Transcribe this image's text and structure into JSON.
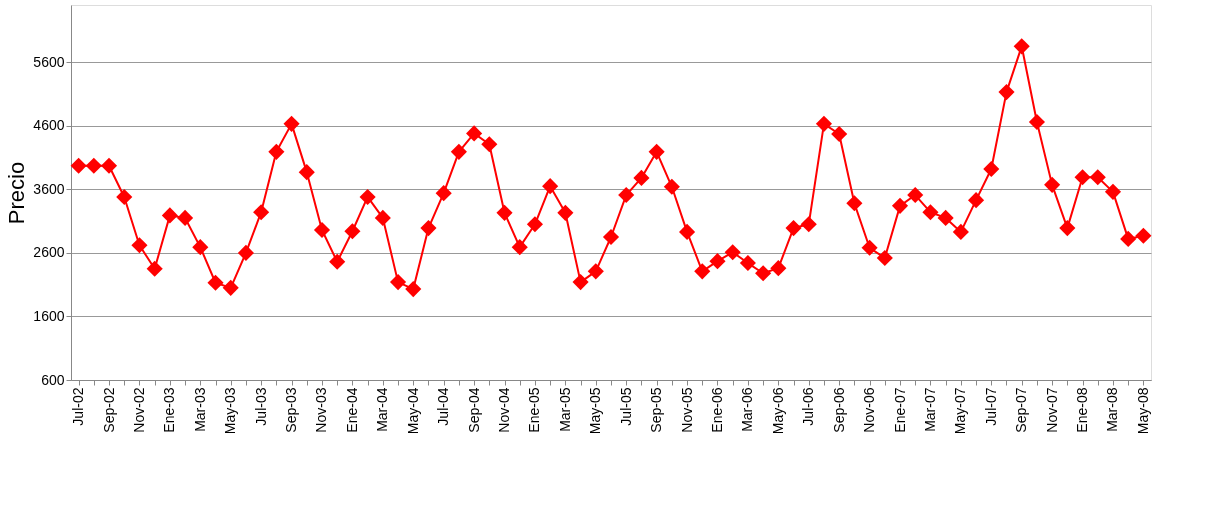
{
  "chart_data": {
    "type": "line",
    "ylabel": "Precio",
    "categories": [
      "Jul-02",
      null,
      "Sep-02",
      null,
      "Nov-02",
      null,
      "Ene-03",
      null,
      "Mar-03",
      null,
      "May-03",
      null,
      "Jul-03",
      null,
      "Sep-03",
      null,
      "Nov-03",
      null,
      "Ene-04",
      null,
      "Mar-04",
      null,
      "May-04",
      null,
      "Jul-04",
      null,
      "Sep-04",
      null,
      "Nov-04",
      null,
      "Ene-05",
      null,
      "Mar-05",
      null,
      "May-05",
      null,
      "Jul-05",
      null,
      "Sep-05",
      null,
      "Nov-05",
      null,
      "Ene-06",
      null,
      "Mar-06",
      null,
      "May-06",
      null,
      "Jul-06",
      null,
      "Sep-06",
      null,
      "Nov-06",
      null,
      "Ene-07",
      null,
      "Mar-07",
      null,
      "May-07",
      null,
      "Jul-07",
      null,
      "Sep-07",
      null,
      "Nov-07",
      null,
      "Ene-08",
      null,
      "Mar-08",
      null,
      "May-08"
    ],
    "series": [
      {
        "color": "#ff0000",
        "values": [
          3970,
          3970,
          3970,
          3480,
          2720,
          2350,
          3190,
          3150,
          2690,
          2130,
          2050,
          2600,
          3240,
          4190,
          4630,
          3870,
          2960,
          2460,
          2940,
          3480,
          3150,
          2140,
          2030,
          2990,
          3540,
          4190,
          4480,
          4310,
          3230,
          2690,
          3050,
          3650,
          3230,
          2140,
          2310,
          2850,
          3510,
          3780,
          4190,
          3640,
          2930,
          2310,
          2470,
          2610,
          2440,
          2280,
          2360,
          2990,
          3050,
          4630,
          4470,
          3380,
          2680,
          2520,
          3340,
          3510,
          3240,
          3150,
          2930,
          3430,
          3920,
          5130,
          5850,
          4660,
          3670,
          2990,
          3790,
          3790,
          3560,
          2820,
          2870
        ]
      }
    ],
    "ylim": [
      600,
      6500
    ],
    "yticks": [
      600,
      1600,
      2600,
      3600,
      4600,
      5600
    ],
    "grid": "y",
    "marker": "diamond",
    "line_style": "solid",
    "legend": false
  }
}
